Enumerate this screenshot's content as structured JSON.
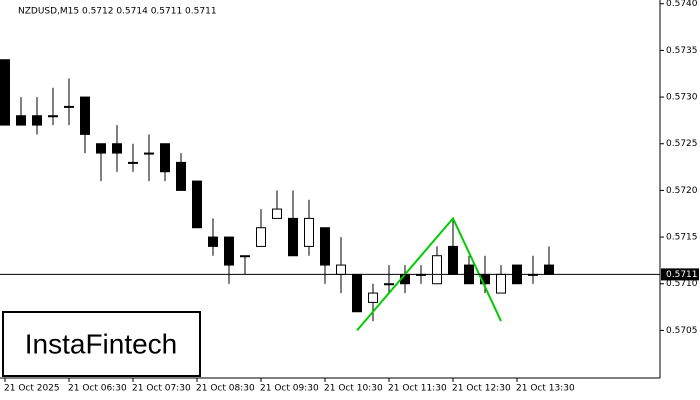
{
  "chart_data": {
    "type": "candlestick",
    "title": "NZDUSD,M15  0.5712 0.5714 0.5711 0.5711",
    "watermark": "InstaFintech",
    "categories": [
      "21 Oct 2025",
      null,
      null,
      null,
      "21 Oct 06:30",
      null,
      null,
      null,
      "21 Oct 07:30",
      null,
      null,
      null,
      "21 Oct 08:30",
      null,
      null,
      null,
      "21 Oct 09:30",
      null,
      null,
      null,
      "21 Oct 10:30",
      null,
      null,
      null,
      "21 Oct 11:30",
      null,
      null,
      null,
      "21 Oct 12:30",
      null,
      null,
      null,
      "21 Oct 13:30",
      null,
      null
    ],
    "open": [
      0.5734,
      0.5728,
      0.5728,
      0.5728,
      0.5729,
      0.573,
      0.5725,
      0.5725,
      0.5723,
      0.5724,
      0.5725,
      0.5723,
      0.5721,
      0.5715,
      0.5715,
      0.5713,
      0.5714,
      0.5717,
      0.5717,
      0.5714,
      0.5716,
      0.5711,
      0.5711,
      0.5708,
      0.571,
      0.5711,
      0.5711,
      0.571,
      0.5714,
      0.5712,
      0.5711,
      0.5709,
      0.5712,
      0.5711,
      0.5712
    ],
    "high": [
      0.5734,
      0.573,
      0.573,
      0.5731,
      0.5732,
      0.573,
      0.5725,
      0.5727,
      0.5725,
      0.5726,
      0.5725,
      0.5724,
      0.5721,
      0.5717,
      0.5715,
      0.5713,
      0.5718,
      0.572,
      0.572,
      0.5719,
      0.5716,
      0.5715,
      0.5711,
      0.571,
      0.5712,
      0.5712,
      0.5712,
      0.5714,
      0.5717,
      0.5713,
      0.5713,
      0.5712,
      0.5712,
      0.5713,
      0.5714
    ],
    "low": [
      0.5727,
      0.5727,
      0.5726,
      0.5727,
      0.5727,
      0.5724,
      0.5721,
      0.5722,
      0.5722,
      0.5721,
      0.5721,
      0.572,
      0.5716,
      0.5713,
      0.571,
      0.5711,
      0.5714,
      0.5717,
      0.5713,
      0.5713,
      0.571,
      0.5709,
      0.5707,
      0.5706,
      0.5709,
      0.5709,
      0.571,
      0.571,
      0.5711,
      0.571,
      0.5709,
      0.5709,
      0.571,
      0.571,
      0.5711
    ],
    "close": [
      0.5727,
      0.5727,
      0.5727,
      0.5728,
      0.5729,
      0.5726,
      0.5724,
      0.5724,
      0.5723,
      0.5724,
      0.5722,
      0.572,
      0.5716,
      0.5714,
      0.5712,
      0.5713,
      0.5716,
      0.5718,
      0.5713,
      0.5717,
      0.5712,
      0.5712,
      0.5707,
      0.5709,
      0.571,
      0.571,
      0.5711,
      0.5713,
      0.5711,
      0.571,
      0.571,
      0.5711,
      0.571,
      0.5711,
      0.5711
    ],
    "pattern": {
      "color": "#00cc00",
      "x": [
        22,
        28,
        31
      ],
      "values": [
        0.5705,
        0.5717,
        0.5706
      ]
    },
    "current_price": 0.5711,
    "ylim": [
      0.56999,
      0.57404
    ],
    "yticks": [
      {
        "value": 0.574,
        "label": "0.5740"
      },
      0.5735,
      {
        "value": 0.573,
        "label": "0.5730"
      },
      0.5725,
      {
        "value": 0.572,
        "label": "0.5720"
      },
      0.5715,
      {
        "value": 0.571,
        "label": "0.5710"
      },
      0.5705
    ]
  }
}
